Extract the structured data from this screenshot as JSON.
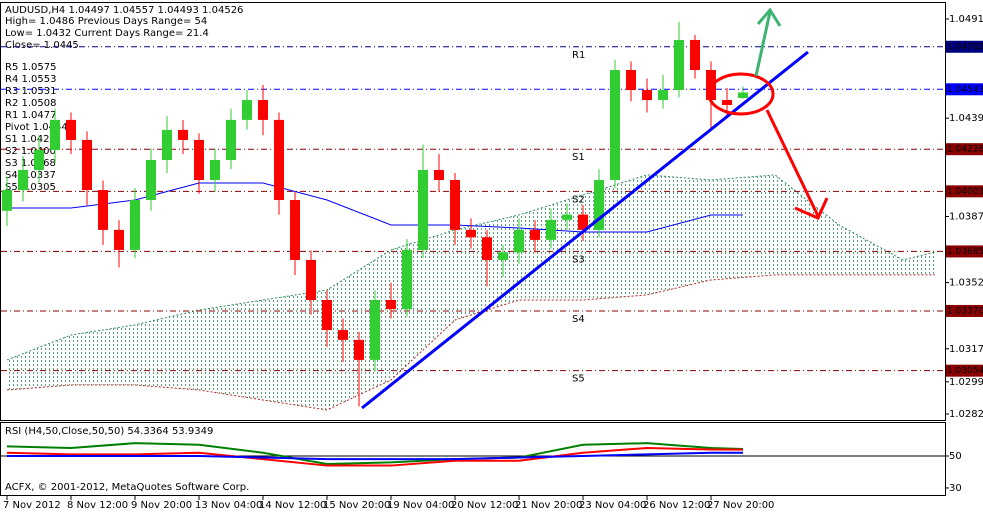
{
  "chart_data": [
    {
      "type": "candlestick",
      "title": "AUDUSD,H4  1.04497 1.04557 1.04493 1.04526",
      "info_lines": [
        "High= 1.0486    Previous Days Range= 54",
        "Low= 1.0432    Current Days Range= 21.4",
        "Close= 1.0445"
      ],
      "pivot_labels": [
        "R5 1.0575",
        "R4 1.0553",
        "R3 1.0531",
        "R2 1.0508",
        "R1 1.0477",
        "Pivot 1.0454",
        "S1 1.0423",
        "S2 1.0400",
        "S3 1.0368",
        "S4 1.0337",
        "S5 1.0305"
      ],
      "categories": [
        "7 Nov 2012",
        null,
        null,
        null,
        "8 Nov 12:00",
        null,
        null,
        null,
        "9 Nov 20:00",
        null,
        null,
        null,
        "13 Nov 04:00",
        null,
        null,
        null,
        "14 Nov 12:00",
        null,
        null,
        null,
        "15 Nov 20:00",
        null,
        null,
        null,
        "19 Nov 04:00",
        null,
        null,
        null,
        "20 Nov 12:00",
        null,
        null,
        null,
        "21 Nov 20:00",
        null,
        null,
        null,
        "23 Nov 04:00",
        null,
        null,
        null,
        "26 Nov 12:00",
        null,
        null,
        null,
        "27 Nov 20:00",
        null,
        null
      ],
      "open": [
        1.039,
        1.0401,
        1.04116,
        1.04222,
        1.04381,
        1.04275,
        1.0401,
        1.03799,
        1.03693,
        1.03957,
        1.04169,
        1.04328,
        1.04275,
        1.04063,
        1.04169,
        1.04381,
        1.04486,
        1.04381,
        1.03957,
        1.0364,
        1.03428,
        1.03269,
        1.03217,
        1.03111,
        1.03428,
        1.0338,
        1.03693,
        1.04116,
        1.04063,
        1.03799,
        1.0376,
        1.0364,
        1.0368,
        1.03799,
        1.03746,
        1.03852,
        1.0388,
        1.03799,
        1.04063,
        1.04645,
        1.04539,
        1.04486,
        1.04539,
        1.04804,
        1.04645,
        1.04486,
        1.04497
      ],
      "high": [
        1.0408,
        1.0419,
        1.043,
        1.0444,
        1.0442,
        1.0432,
        1.0406,
        1.0385,
        1.0402,
        1.0423,
        1.044,
        1.0438,
        1.0431,
        1.0423,
        1.0444,
        1.0454,
        1.04566,
        1.0442,
        1.04,
        1.0369,
        1.0348,
        1.0333,
        1.0326,
        1.0348,
        1.0352,
        1.0375,
        1.0425,
        1.042,
        1.041,
        1.0386,
        1.038,
        1.0372,
        1.0386,
        1.0385,
        1.0391,
        1.0394,
        1.0393,
        1.0412,
        1.047,
        1.0469,
        1.046,
        1.0462,
        1.04899,
        1.0483,
        1.0469,
        1.0455,
        1.04557
      ],
      "low": [
        1.0382,
        1.0395,
        1.0405,
        1.0415,
        1.042,
        1.0393,
        1.0372,
        1.036,
        1.0365,
        1.039,
        1.041,
        1.042,
        1.0399,
        1.04,
        1.0412,
        1.0433,
        1.043,
        1.0388,
        1.0356,
        1.0335,
        1.0318,
        1.031,
        1.02865,
        1.0305,
        1.0333,
        1.0334,
        1.0365,
        1.04,
        1.0372,
        1.037,
        1.035,
        1.0355,
        1.0362,
        1.0368,
        1.037,
        1.038,
        1.0374,
        1.0376,
        1.0402,
        1.0448,
        1.0442,
        1.0444,
        1.045,
        1.046,
        1.0433,
        1.044,
        1.04493
      ],
      "close": [
        1.0401,
        1.04116,
        1.04222,
        1.04381,
        1.04275,
        1.0401,
        1.03799,
        1.03693,
        1.03957,
        1.04169,
        1.04328,
        1.04275,
        1.04063,
        1.04169,
        1.04381,
        1.04486,
        1.04381,
        1.03957,
        1.0364,
        1.03428,
        1.03269,
        1.03217,
        1.03111,
        1.03428,
        1.0338,
        1.03693,
        1.04116,
        1.04063,
        1.03799,
        1.0376,
        1.0364,
        1.0368,
        1.03799,
        1.03746,
        1.03852,
        1.0388,
        1.03799,
        1.04063,
        1.04645,
        1.04539,
        1.04486,
        1.04539,
        1.04804,
        1.04645,
        1.04486,
        1.0446,
        1.04526
      ],
      "up_color": "#32cd32",
      "down_color": "#ff0000",
      "cloud": {
        "x": [
          0,
          4,
          8,
          12,
          16,
          20,
          24,
          28,
          32,
          36,
          40,
          44,
          48,
          52,
          56,
          58
        ],
        "upper": [
          1.03111,
          1.03243,
          1.03296,
          1.03375,
          1.03428,
          1.03481,
          1.03693,
          1.03799,
          1.03878,
          1.03984,
          1.0409,
          1.04063,
          1.0409,
          1.03825,
          1.0364,
          1.03682
        ],
        "lower": [
          1.02952,
          1.02978,
          1.02978,
          1.02952,
          1.02899,
          1.02846,
          1.03005,
          1.03322,
          1.03428,
          1.03428,
          1.03455,
          1.03534,
          1.03561,
          1.03561,
          1.03561,
          1.03561
        ],
        "upper_color": "#2e8b57",
        "lower_color": "#b22222"
      },
      "kijun": {
        "x": [
          0,
          4,
          8,
          12,
          16,
          20,
          24,
          28,
          32,
          36,
          40,
          44,
          46
        ],
        "values": [
          1.03915,
          1.03915,
          1.03957,
          1.04047,
          1.04047,
          1.03957,
          1.03825,
          1.03825,
          1.03809,
          1.03788,
          1.03788,
          1.03878,
          1.03878
        ],
        "color": "#0000ff"
      },
      "levels": [
        {
          "value": 1.04768,
          "label": "1.04768",
          "name": "R1",
          "color": "#000080"
        },
        {
          "value": 1.04543,
          "label": "1.04543",
          "color": "#0000ff"
        },
        {
          "value": 1.04226,
          "label": "1.04226",
          "name": "S1",
          "color": "#8b0000"
        },
        {
          "value": 1.04003,
          "label": "1.04003",
          "name": "S2",
          "color": "#8b0000"
        },
        {
          "value": 1.03685,
          "label": "1.03685",
          "name": "S3",
          "color": "#8b0000"
        },
        {
          "value": 1.0337,
          "label": "1.03370",
          "name": "S4",
          "color": "#8b0000"
        },
        {
          "value": 1.03054,
          "label": "1.03054",
          "name": "S5",
          "color": "#8b0000"
        }
      ],
      "ylim": [
        1.02793,
        1.04989
      ],
      "yticks": [
        {
          "value": 1.04915,
          "label": "1.04915"
        },
        {
          "value": 1.0439,
          "label": "1.04390"
        },
        {
          "value": 1.0387,
          "label": "1.03870"
        },
        {
          "value": 1.0352,
          "label": "1.03520"
        },
        {
          "value": 1.0317,
          "label": "1.03170"
        },
        {
          "value": 1.02995,
          "label": "1.02995"
        },
        {
          "value": 1.02825,
          "label": "1.02825"
        }
      ]
    },
    {
      "type": "line",
      "title": "RSI (H4,50,Close,50,50) 54.3364 53.9349",
      "x": [
        0,
        4,
        8,
        12,
        16,
        20,
        24,
        28,
        32,
        36,
        40,
        44,
        46
      ],
      "series": [
        {
          "color": "#008000",
          "values": [
            56,
            55,
            58,
            57,
            52,
            45,
            46,
            48,
            49,
            57,
            58,
            55,
            54.3364
          ]
        },
        {
          "color": "#ff0000",
          "values": [
            52,
            51,
            51,
            52,
            48,
            44,
            44,
            47,
            47,
            52,
            55,
            54,
            53.9349
          ]
        },
        {
          "color": "#0000ff",
          "values": [
            50,
            50,
            50,
            50,
            49,
            48,
            48,
            48,
            49,
            50,
            51,
            52,
            52
          ]
        }
      ],
      "ylim": [
        25.6,
        70.6
      ],
      "yticks": [
        50,
        30
      ]
    }
  ],
  "footer": "ACFX, © 2001-2012, MetaQuotes Software Corp."
}
